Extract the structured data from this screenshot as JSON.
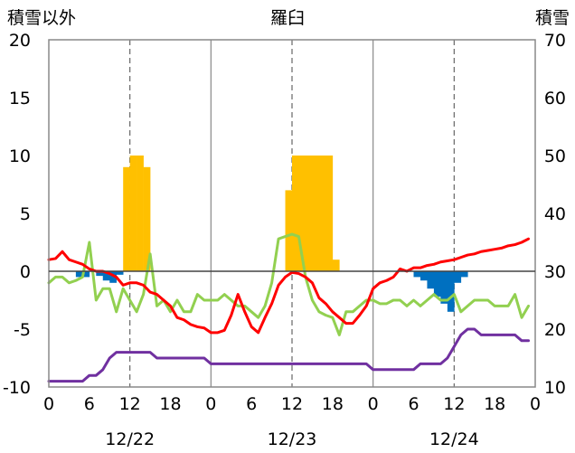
{
  "chart_data": {
    "type": "bar+line",
    "title": "羅臼",
    "left_axis": {
      "label": "積雪以外",
      "ylim": [
        -10,
        20
      ],
      "ticks": [
        "20",
        "15",
        "10",
        "5",
        "0",
        "-5",
        "-10"
      ]
    },
    "right_axis": {
      "label": "積雪",
      "ylim": [
        10,
        70
      ],
      "ticks": [
        "70",
        "60",
        "50",
        "40",
        "30",
        "20",
        "10"
      ]
    },
    "x_axis": {
      "hour_range": [
        0,
        72
      ],
      "hour_ticks": [
        "0",
        "6",
        "12",
        "18",
        "0",
        "6",
        "12",
        "18",
        "0",
        "6",
        "12",
        "18",
        "0"
      ],
      "day_labels": [
        "12/22",
        "12/23",
        "12/24"
      ]
    },
    "colors": {
      "snowfall": "#FFC000",
      "precip": "#0070C0",
      "temperature": "#FF0000",
      "dewpoint": "#92D050",
      "snow_depth": "#7030A0"
    },
    "series": [
      {
        "key": "snowfall",
        "type": "bar",
        "axis": "left",
        "x": [
          11,
          12,
          13,
          14,
          35,
          36,
          37,
          38,
          39,
          40,
          41,
          42
        ],
        "values": [
          9,
          10,
          10,
          9,
          7,
          10,
          10,
          10,
          10,
          10,
          10,
          1
        ]
      },
      {
        "key": "precip",
        "type": "bar",
        "axis": "left",
        "x": [
          4,
          5,
          7,
          8,
          9,
          10,
          54,
          55,
          56,
          57,
          58,
          59,
          60,
          61
        ],
        "values": [
          -0.5,
          -0.5,
          -0.4,
          -0.8,
          -1.0,
          -0.3,
          -0.5,
          -0.8,
          -1.5,
          -2.2,
          -2.8,
          -3.5,
          -1.0,
          -0.5
        ]
      },
      {
        "key": "temperature",
        "type": "line",
        "axis": "left",
        "x": [
          0,
          1,
          2,
          3,
          4,
          5,
          6,
          7,
          8,
          9,
          10,
          11,
          12,
          13,
          14,
          15,
          16,
          17,
          18,
          19,
          20,
          21,
          22,
          23,
          24,
          25,
          26,
          27,
          28,
          29,
          30,
          31,
          32,
          33,
          34,
          35,
          36,
          37,
          38,
          39,
          40,
          41,
          42,
          43,
          44,
          45,
          46,
          47,
          48,
          49,
          50,
          51,
          52,
          53,
          54,
          55,
          56,
          57,
          58,
          59,
          60,
          61,
          62,
          63,
          64,
          65,
          66,
          67,
          68,
          69,
          70,
          71
        ],
        "values": [
          1.0,
          1.1,
          1.7,
          1.0,
          0.8,
          0.6,
          0.2,
          0.0,
          0.0,
          -0.2,
          -0.5,
          -1.2,
          -1.0,
          -1.0,
          -1.2,
          -1.8,
          -2.0,
          -2.5,
          -3.0,
          -4.0,
          -4.2,
          -4.6,
          -4.8,
          -4.9,
          -5.3,
          -5.3,
          -5.1,
          -3.8,
          -2.0,
          -3.5,
          -4.8,
          -5.3,
          -4.0,
          -2.8,
          -1.2,
          -0.5,
          -0.1,
          -0.2,
          -0.5,
          -1.0,
          -2.3,
          -2.8,
          -3.5,
          -4.0,
          -4.5,
          -4.5,
          -3.8,
          -3.0,
          -1.5,
          -1.0,
          -0.8,
          -0.5,
          0.2,
          0.0,
          0.3,
          0.3,
          0.5,
          0.6,
          0.8,
          0.9,
          1.0,
          1.2,
          1.4,
          1.5,
          1.7,
          1.8,
          1.9,
          2.0,
          2.2,
          2.3,
          2.5,
          2.8
        ]
      },
      {
        "key": "dewpoint",
        "type": "line",
        "axis": "left",
        "x": [
          0,
          1,
          2,
          3,
          4,
          5,
          6,
          7,
          8,
          9,
          10,
          11,
          12,
          13,
          14,
          15,
          16,
          17,
          18,
          19,
          20,
          21,
          22,
          23,
          24,
          25,
          26,
          27,
          28,
          29,
          30,
          31,
          32,
          33,
          34,
          35,
          36,
          37,
          38,
          39,
          40,
          41,
          42,
          43,
          44,
          45,
          46,
          47,
          48,
          49,
          50,
          51,
          52,
          53,
          54,
          55,
          56,
          57,
          58,
          59,
          60,
          61,
          62,
          63,
          64,
          65,
          66,
          67,
          68,
          69,
          70,
          71
        ],
        "values": [
          -1.0,
          -0.5,
          -0.5,
          -1.0,
          -0.8,
          -0.5,
          2.5,
          -2.5,
          -1.5,
          -1.5,
          -3.5,
          -1.5,
          -2.5,
          -3.5,
          -2.0,
          1.5,
          -3.0,
          -2.5,
          -3.5,
          -2.5,
          -3.5,
          -3.5,
          -2.0,
          -2.5,
          -2.5,
          -2.5,
          -2.0,
          -2.5,
          -3.0,
          -3.0,
          -3.5,
          -4.0,
          -3.0,
          -1.0,
          2.8,
          3.0,
          3.2,
          3.0,
          -0.5,
          -2.5,
          -3.5,
          -3.8,
          -4.0,
          -5.5,
          -3.5,
          -3.5,
          -3.0,
          -2.5,
          -2.5,
          -2.8,
          -2.8,
          -2.5,
          -2.5,
          -3.0,
          -2.5,
          -3.0,
          -2.5,
          -2.0,
          -2.5,
          -2.5,
          -2.0,
          -3.5,
          -3.0,
          -2.5,
          -2.5,
          -2.5,
          -3.0,
          -3.0,
          -3.0,
          -2.0,
          -4.0,
          -3.0
        ]
      },
      {
        "key": "snow_depth",
        "type": "line",
        "axis": "right",
        "x": [
          0,
          1,
          2,
          3,
          4,
          5,
          6,
          7,
          8,
          9,
          10,
          11,
          12,
          13,
          14,
          15,
          16,
          17,
          18,
          19,
          20,
          21,
          22,
          23,
          24,
          25,
          26,
          27,
          28,
          29,
          30,
          31,
          32,
          33,
          34,
          35,
          36,
          37,
          38,
          39,
          40,
          41,
          42,
          43,
          44,
          45,
          46,
          47,
          48,
          49,
          50,
          51,
          52,
          53,
          54,
          55,
          56,
          57,
          58,
          59,
          60,
          61,
          62,
          63,
          64,
          65,
          66,
          67,
          68,
          69,
          70,
          71
        ],
        "values": [
          11,
          11,
          11,
          11,
          11,
          11,
          12,
          12,
          13,
          15,
          16,
          16,
          16,
          16,
          16,
          16,
          15,
          15,
          15,
          15,
          15,
          15,
          15,
          15,
          14,
          14,
          14,
          14,
          14,
          14,
          14,
          14,
          14,
          14,
          14,
          14,
          14,
          14,
          14,
          14,
          14,
          14,
          14,
          14,
          14,
          14,
          14,
          14,
          13,
          13,
          13,
          13,
          13,
          13,
          13,
          14,
          14,
          14,
          14,
          15,
          17,
          19,
          20,
          20,
          19,
          19,
          19,
          19,
          19,
          19,
          18,
          18
        ]
      }
    ]
  }
}
